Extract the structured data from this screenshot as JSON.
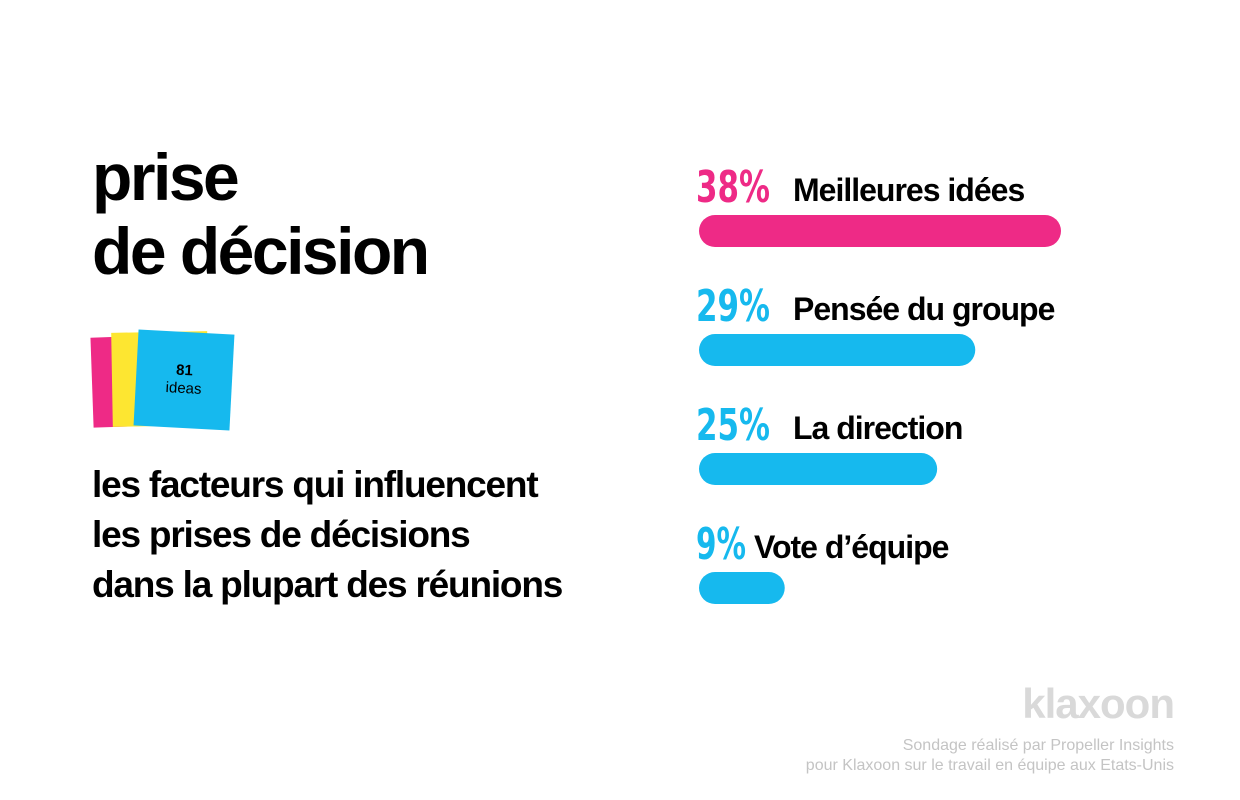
{
  "title_lines": [
    "prise",
    "de décision"
  ],
  "sticky_note": {
    "count": "81",
    "label": "ideas"
  },
  "subtitle_lines": [
    "les facteurs qui influencent",
    "les prises de décisions",
    "dans la plupart des réunions"
  ],
  "colors": {
    "pink": "#ee2a86",
    "blue": "#16b9ee",
    "yellow": "#fde631"
  },
  "chart_data": {
    "type": "bar",
    "orientation": "horizontal",
    "categories": [
      "Meilleures idées",
      "Pensée du groupe",
      "La direction",
      "Vote d’équipe"
    ],
    "values": [
      38,
      29,
      25,
      9
    ],
    "value_labels": [
      "38%",
      "29%",
      "25%",
      "9%"
    ],
    "bar_colors": [
      "#ee2a86",
      "#16b9ee",
      "#16b9ee",
      "#16b9ee"
    ],
    "unit": "%",
    "grid": false
  },
  "brand": "klaxoon",
  "source_lines": [
    "Sondage réalisé par Propeller Insights",
    "pour Klaxoon sur le travail en équipe aux Etats-Unis"
  ]
}
